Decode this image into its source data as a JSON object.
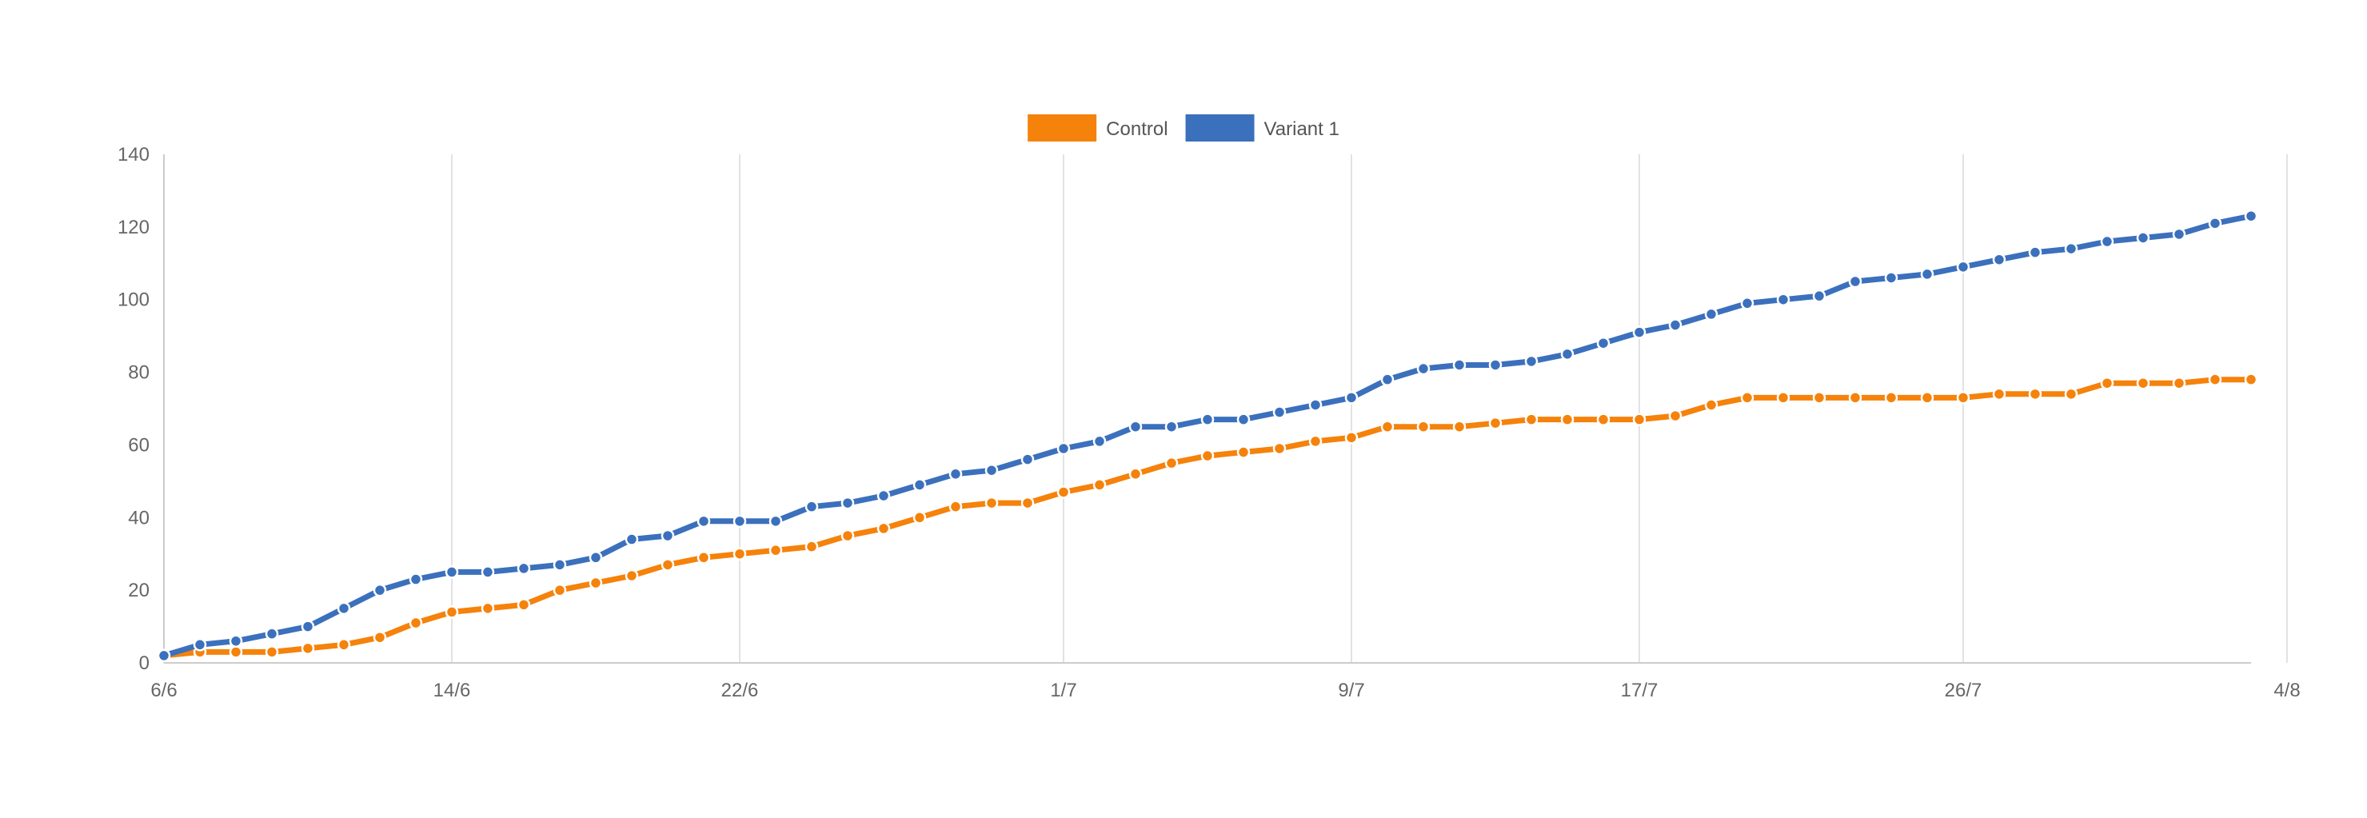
{
  "chart_data": {
    "type": "line",
    "title": "",
    "xlabel": "",
    "ylabel": "",
    "ylim": [
      0,
      140
    ],
    "yticks": [
      0,
      20,
      40,
      60,
      80,
      100,
      120,
      140
    ],
    "xtick_labels": [
      "6/6",
      "14/6",
      "22/6",
      "1/7",
      "9/7",
      "17/7",
      "26/7",
      "4/8"
    ],
    "x_start_date": "2019-06-06",
    "num_points": 59,
    "grid": {
      "vertical": true,
      "horizontal": false
    },
    "legend": {
      "position": "top-center"
    },
    "series": [
      {
        "name": "Control",
        "color": "#f5820b",
        "values": [
          2,
          3,
          3,
          3,
          4,
          5,
          7,
          11,
          14,
          15,
          16,
          20,
          22,
          24,
          27,
          29,
          30,
          31,
          32,
          35,
          37,
          40,
          43,
          44,
          44,
          47,
          49,
          52,
          55,
          57,
          58,
          59,
          61,
          62,
          65,
          65,
          65,
          66,
          67,
          67,
          67,
          67,
          68,
          71,
          73,
          73,
          73,
          73,
          73,
          73,
          73,
          74,
          74,
          74,
          77,
          77,
          77,
          78,
          78
        ]
      },
      {
        "name": "Variant 1",
        "color": "#3b70bd",
        "values": [
          2,
          5,
          6,
          8,
          10,
          15,
          20,
          23,
          25,
          25,
          26,
          27,
          29,
          34,
          35,
          39,
          39,
          39,
          43,
          44,
          46,
          49,
          52,
          53,
          56,
          59,
          61,
          65,
          65,
          67,
          67,
          69,
          71,
          73,
          78,
          81,
          82,
          82,
          83,
          85,
          88,
          91,
          93,
          96,
          99,
          100,
          101,
          105,
          106,
          107,
          109,
          111,
          113,
          114,
          116,
          117,
          118,
          121,
          123
        ]
      }
    ]
  }
}
